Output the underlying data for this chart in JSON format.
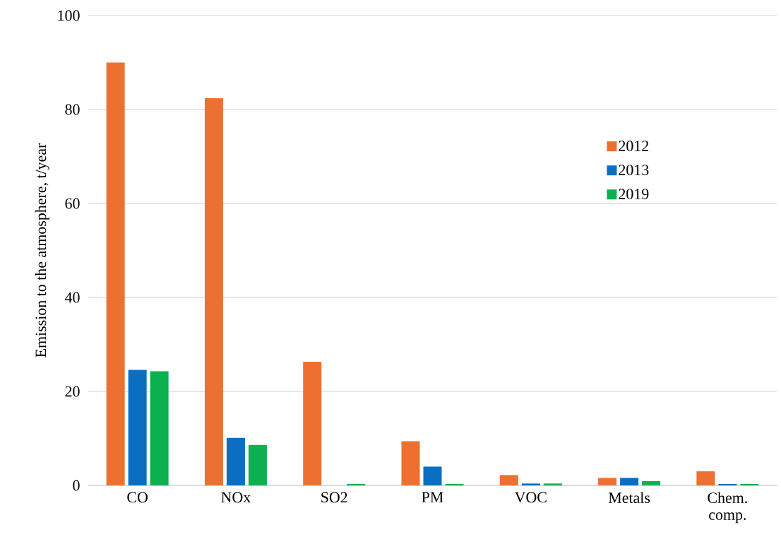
{
  "chart_data": {
    "type": "bar",
    "ylabel": "Emission to the atmosphere, t/year",
    "categories": [
      "CO",
      "NOx",
      "SO2",
      "PM",
      "VOC",
      "Metals",
      "Chem. comp."
    ],
    "series": [
      {
        "name": "2012",
        "color": "#ed7031",
        "values": [
          90,
          82.4,
          26.3,
          9.4,
          2.2,
          1.6,
          3.0
        ]
      },
      {
        "name": "2013",
        "color": "#0a6fc2",
        "values": [
          24.6,
          10.1,
          0,
          4.0,
          0.4,
          1.6,
          0.3
        ]
      },
      {
        "name": "2019",
        "color": "#0db04e",
        "values": [
          24.3,
          8.6,
          0.3,
          0.3,
          0.4,
          0.9,
          0.3
        ]
      }
    ],
    "ylim": [
      0,
      100
    ],
    "yticks": [
      0,
      20,
      40,
      60,
      80,
      100
    ],
    "grid": "y",
    "legend": "right"
  }
}
